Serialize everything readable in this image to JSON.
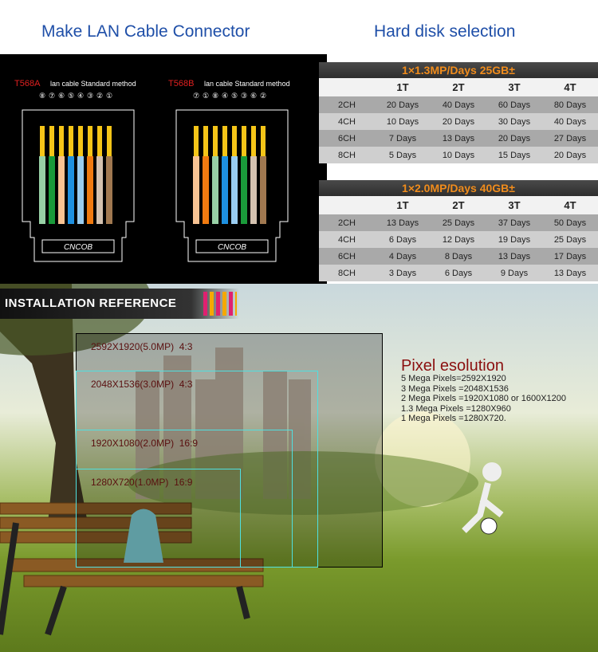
{
  "header": {
    "left_title": "Make LAN Cable Connector",
    "right_title": "Hard disk selection"
  },
  "connectors": [
    {
      "standard": "T568A",
      "method": "lan cable Standard method",
      "pins": [
        "⑧",
        "⑦",
        "⑥",
        "⑤",
        "④",
        "③",
        "②",
        "①"
      ],
      "logo": "CNCOB"
    },
    {
      "standard": "T568B",
      "method": "lan cable Standard method",
      "pins": [
        "⑦",
        "①",
        "⑧",
        "④",
        "⑤",
        "③",
        "⑥",
        "②"
      ],
      "logo": "CNCOB"
    }
  ],
  "tables": [
    {
      "title": "1×1.3MP/Days 25GB±",
      "columns": [
        "1T",
        "2T",
        "3T",
        "4T"
      ],
      "rows": [
        [
          "2CH",
          "20 Days",
          "40 Days",
          "60 Days",
          "80 Days"
        ],
        [
          "4CH",
          "10 Days",
          "20 Days",
          "30 Days",
          "40 Days"
        ],
        [
          "6CH",
          "7 Days",
          "13 Days",
          "20 Days",
          "27 Days"
        ],
        [
          "8CH",
          "5 Days",
          "10 Days",
          "15 Days",
          "20 Days"
        ]
      ]
    },
    {
      "title": "1×2.0MP/Days 40GB±",
      "columns": [
        "1T",
        "2T",
        "3T",
        "4T"
      ],
      "rows": [
        [
          "2CH",
          "13 Days",
          "25 Days",
          "37 Days",
          "50 Days"
        ],
        [
          "4CH",
          "6 Days",
          "12 Days",
          "19 Days",
          "25 Days"
        ],
        [
          "6CH",
          "4 Days",
          "8 Days",
          "13 Days",
          "17 Days"
        ],
        [
          "8CH",
          "3 Days",
          "6 Days",
          "9 Days",
          "13 Days"
        ]
      ]
    }
  ],
  "installation": {
    "banner": "INSTALLATION REFERENCE",
    "frames": [
      "2592X1920(5.0MP)  4:3",
      "2048X1536(3.0MP)  4:3",
      "1920X1080(2.0MP)  16:9",
      "1280X720(1.0MP)  16:9"
    ],
    "resolution_title": "Pixel esolution",
    "resolution_lines": [
      "5 Mega Pixels=2592X1920",
      "3 Mega Pixels =2048X1536",
      "2 Mega Pixels =1920X1080 or 1600X1200",
      "1.3 Mega Pixels =1280X960",
      "1 Mega Pixels =1280X720."
    ]
  }
}
